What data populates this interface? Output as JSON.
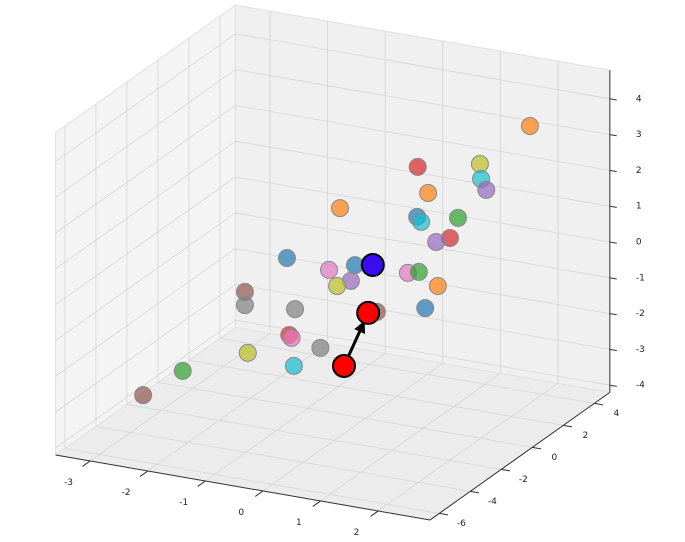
{
  "chart_data": {
    "type": "scatter3d",
    "xlim": [
      -3.6,
      2.9
    ],
    "ylim": [
      -6.6,
      5
    ],
    "zlim": [
      -4.2,
      4.8
    ],
    "xticks": [
      -3,
      -2,
      -1,
      0,
      1,
      2
    ],
    "yticks": [
      -6,
      -4,
      -2,
      0,
      2,
      4
    ],
    "zticks": [
      -4,
      -3,
      -2,
      -1,
      0,
      1,
      2,
      3,
      4
    ],
    "grid": true,
    "series": [
      {
        "x": [
          2.32,
          0.91,
          1.99,
          2.01,
          2.1,
          1.09,
          -0.44,
          0.9,
          0.97,
          1.61,
          1.47,
          1.23,
          -1.36,
          -0.18,
          -0.63,
          -0.25,
          -0.49,
          0.74,
          0.93,
          1.26,
          -2.09,
          -2.09,
          -1.22,
          0.2,
          1.04,
          -1.32,
          -1.28,
          -0.78,
          -2.04,
          -1.24,
          -3.17,
          -3.05
        ],
        "y": [
          2,
          0,
          0,
          0,
          0,
          0,
          0,
          0,
          0,
          0,
          0,
          0,
          0,
          0,
          0,
          0,
          0,
          0,
          0,
          0,
          0,
          0,
          0,
          0,
          0,
          0,
          0,
          0,
          0,
          0,
          0,
          -3
        ],
        "z": [
          4.0,
          3.08,
          3.46,
          3.05,
          2.77,
          2.4,
          1.55,
          1.68,
          1.56,
          1.85,
          1.25,
          1.07,
          -0.1,
          0.03,
          -0.23,
          -0.43,
          -0.64,
          0.07,
          0.15,
          -0.15,
          -1.25,
          -1.62,
          -1.49,
          -1.17,
          -0.83,
          -2.24,
          -2.31,
          -2.45,
          -2.94,
          -3.08,
          -3.76,
          -3.48
        ],
        "colors": [
          "#ff7f0e",
          "#d62728",
          "#bcbd22",
          "#17becf",
          "#9467bd",
          "#ff7f0e",
          "#ff7f0e",
          "#1f77b4",
          "#17becf",
          "#2ca02c",
          "#d62728",
          "#9467bd",
          "#1f77b4",
          "#1f77b4",
          "#e377c2",
          "#9467bd",
          "#bcbd22",
          "#e377c2",
          "#2ca02c",
          "#ff7f0e",
          "#8c564b",
          "#7f7f7f",
          "#7f7f7f",
          "#8c564b",
          "#1f77b4",
          "#d62728",
          "#e377c2",
          "#7f7f7f",
          "#bcbd22",
          "#17becf",
          "#2ca02c",
          "#8c564b"
        ]
      }
    ],
    "markers": [
      {
        "x": 0.13,
        "y": 0,
        "z": 0.12,
        "color": "#3a0cf0"
      },
      {
        "x": 0.05,
        "y": 0,
        "z": -1.24,
        "color": "#ff0000"
      },
      {
        "x": -0.37,
        "y": 0,
        "z": -2.84,
        "color": "#ff0000"
      }
    ]
  }
}
